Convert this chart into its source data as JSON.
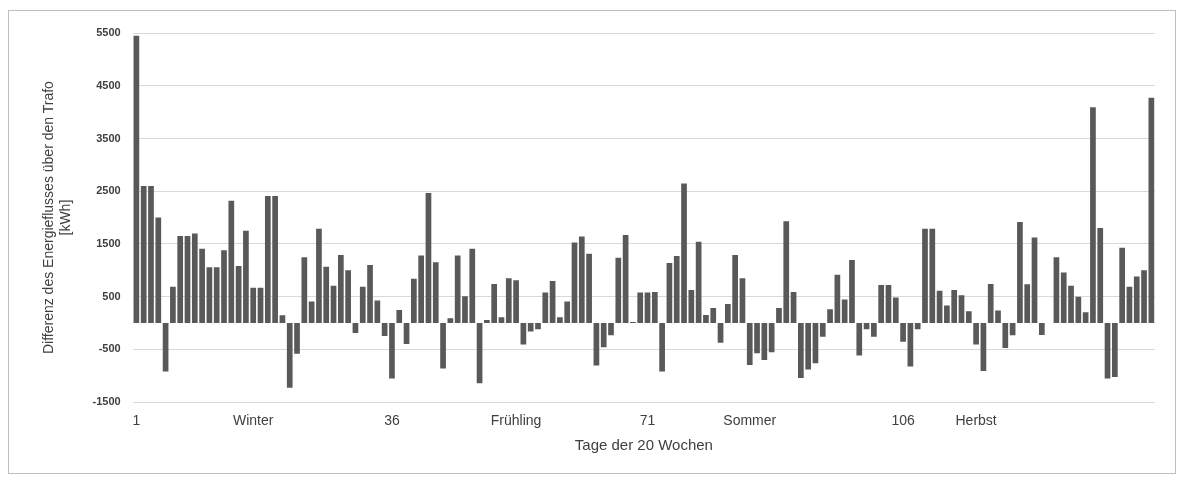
{
  "chart_data": {
    "type": "bar",
    "xlabel": "Tage der 20 Wochen",
    "ylabel": "Differenz des Energieflusses über den Trafo [kWh]",
    "categories": [
      "1",
      null,
      null,
      null,
      null,
      null,
      null,
      null,
      null,
      null,
      null,
      null,
      null,
      null,
      null,
      null,
      "Winter",
      null,
      null,
      null,
      null,
      null,
      null,
      null,
      null,
      null,
      null,
      null,
      null,
      null,
      null,
      null,
      null,
      null,
      null,
      "36",
      null,
      null,
      null,
      null,
      null,
      null,
      null,
      null,
      null,
      null,
      null,
      null,
      null,
      null,
      null,
      null,
      "Frühling",
      null,
      null,
      null,
      null,
      null,
      null,
      null,
      null,
      null,
      null,
      null,
      null,
      null,
      null,
      null,
      null,
      null,
      "71",
      null,
      null,
      null,
      null,
      null,
      null,
      null,
      null,
      null,
      null,
      null,
      null,
      null,
      "Sommer",
      null,
      null,
      null,
      null,
      null,
      null,
      null,
      null,
      null,
      null,
      null,
      null,
      null,
      null,
      null,
      null,
      null,
      null,
      null,
      null,
      "106",
      null,
      null,
      null,
      null,
      null,
      null,
      null,
      null,
      null,
      "Herbst",
      null,
      null,
      null,
      null,
      null,
      null,
      null,
      null,
      null,
      null,
      null,
      null,
      null,
      null,
      null,
      null,
      null,
      null,
      null,
      null,
      null,
      null,
      null,
      null
    ],
    "values": [
      5450,
      2600,
      2600,
      2000,
      -920,
      690,
      1650,
      1650,
      1700,
      1410,
      1060,
      1060,
      1380,
      2320,
      1080,
      1750,
      670,
      670,
      2410,
      2410,
      150,
      -1225,
      -580,
      1250,
      410,
      1790,
      1070,
      710,
      1290,
      1000,
      -190,
      690,
      1100,
      430,
      -245,
      -1050,
      250,
      -395,
      840,
      1280,
      2465,
      1155,
      -860,
      90,
      1280,
      510,
      1410,
      -1140,
      60,
      740,
      110,
      850,
      810,
      -405,
      -160,
      -115,
      580,
      800,
      110,
      410,
      1530,
      1640,
      1315,
      -805,
      -460,
      -230,
      1240,
      1670,
      20,
      580,
      580,
      590,
      -920,
      1140,
      1270,
      2645,
      625,
      1540,
      155,
      285,
      -375,
      360,
      1290,
      850,
      -795,
      -570,
      -700,
      -555,
      285,
      1930,
      590,
      -1040,
      -880,
      -760,
      -260,
      260,
      915,
      445,
      1195,
      -615,
      -115,
      -260,
      720,
      720,
      485,
      -355,
      -825,
      -115,
      1790,
      1790,
      615,
      335,
      625,
      530,
      225,
      -405,
      -910,
      740,
      240,
      -470,
      -230,
      1915,
      735,
      1625,
      -225,
      0,
      1250,
      960,
      710,
      500,
      205,
      4090,
      1805,
      -1050,
      -1020,
      1430,
      690,
      885,
      1000,
      4270
    ],
    "color": "#595959",
    "ylim": [
      -1500,
      5500
    ],
    "yticks": [
      -1500,
      -500,
      500,
      1500,
      2500,
      3500,
      4500,
      5500
    ],
    "grid": "y",
    "legend": false
  }
}
